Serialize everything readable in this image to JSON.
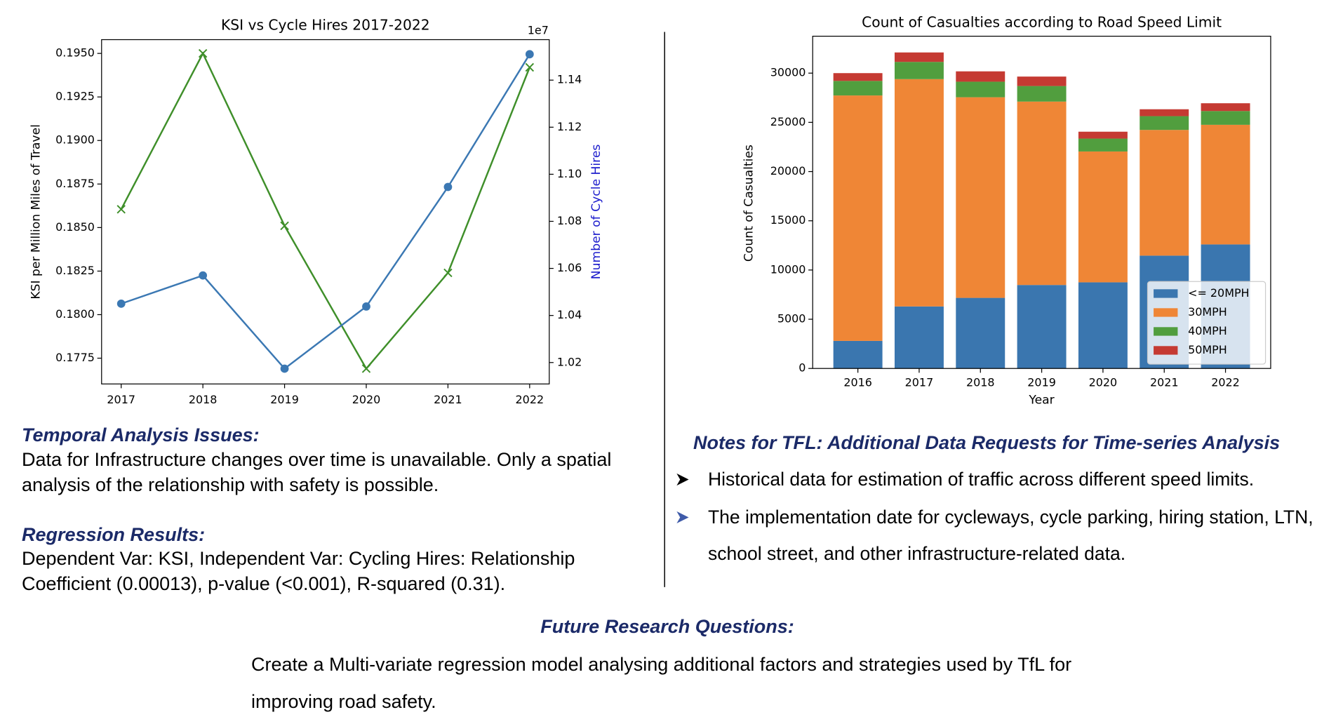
{
  "chart_data": [
    {
      "type": "line",
      "title": "KSI vs Cycle Hires 2017-2022",
      "x": [
        2017,
        2018,
        2019,
        2020,
        2021,
        2022
      ],
      "xlim": [
        2016.76,
        2022.24
      ],
      "xticks": [
        2017,
        2018,
        2019,
        2020,
        2021,
        2022
      ],
      "ylabel": "KSI per Million Miles of Travel",
      "y2label": "Number of Cycle Hires",
      "y2label_color": "#1a1acc",
      "y2_offset_label": "1e7",
      "ylim": [
        0.17602,
        0.19579
      ],
      "yticks": [
        0.1775,
        {
          "value": 0.18,
          "label": "0.1800"
        },
        0.1825,
        {
          "value": 0.185,
          "label": "0.1850"
        },
        0.1875,
        {
          "value": 0.19,
          "label": "0.1900"
        },
        0.1925,
        {
          "value": 0.195,
          "label": "0.1950"
        }
      ],
      "y2lim": [
        1.0109,
        1.1572
      ],
      "y2ticks": [
        1.02,
        1.04,
        1.06,
        1.08,
        {
          "value": 1.1,
          "label": "1.10"
        },
        1.12,
        1.14
      ],
      "series": [
        {
          "color": "#3f8f2a",
          "marker": "x",
          "values": [
            0.18605,
            0.195,
            0.1851,
            0.1769,
            0.1824,
            0.1942
          ]
        },
        {
          "color": "#3b78b3",
          "marker": "o",
          "axis": "y2",
          "values": [
            1.045,
            1.057,
            1.0174,
            1.0438,
            1.0946,
            1.151
          ]
        }
      ]
    },
    {
      "type": "stacked_bar",
      "title": "Count of Casualties according to Road Speed Limit",
      "xlabel": "Year",
      "ylabel": "Count of Casualties",
      "categories": [
        "2016",
        "2017",
        "2018",
        "2019",
        "2020",
        "2021",
        "2022"
      ],
      "ylim": [
        0,
        33750
      ],
      "yticks": [
        0,
        5000,
        10000,
        15000,
        20000,
        25000,
        30000
      ],
      "legend": "lower right",
      "series": [
        {
          "name": "<= 20MPH",
          "color": "#3a76af",
          "values": [
            2800,
            6300,
            7170,
            8480,
            8750,
            11460,
            12600
          ]
        },
        {
          "name": "30MPH",
          "color": "#ef8636",
          "values": [
            24930,
            23090,
            20380,
            18630,
            13290,
            12770,
            12150
          ]
        },
        {
          "name": "40MPH",
          "color": "#519e3e",
          "values": [
            1480,
            1750,
            1580,
            1580,
            1310,
            1400,
            1400
          ]
        },
        {
          "name": "50MPH",
          "color": "#c53a32",
          "values": [
            790,
            960,
            1050,
            960,
            700,
            700,
            790
          ]
        }
      ]
    }
  ],
  "sections": {
    "temporal": {
      "heading": "Temporal Analysis Issues:",
      "text": "Data for Infrastructure changes over time is unavailable. Only a spatial analysis of the relationship with safety is possible."
    },
    "regression": {
      "heading": "Regression Results:",
      "text": "Dependent Var: KSI, Independent Var: Cycling Hires: Relationship Coefficient (0.00013), p-value (<0.001), R-squared  (0.31)."
    },
    "notes": {
      "heading": "Notes for TFL: Additional Data Requests for Time-series Analysis",
      "bullets": [
        "Historical data for estimation of traffic across different speed limits.",
        "The implementation date for cycleways, cycle parking, hiring station, LTN, school street, and other infrastructure-related data."
      ]
    },
    "future": {
      "heading": "Future Research Questions:",
      "text": "Create a Multi-variate regression model analysing additional factors and strategies used by TfL for improving road safety."
    }
  }
}
